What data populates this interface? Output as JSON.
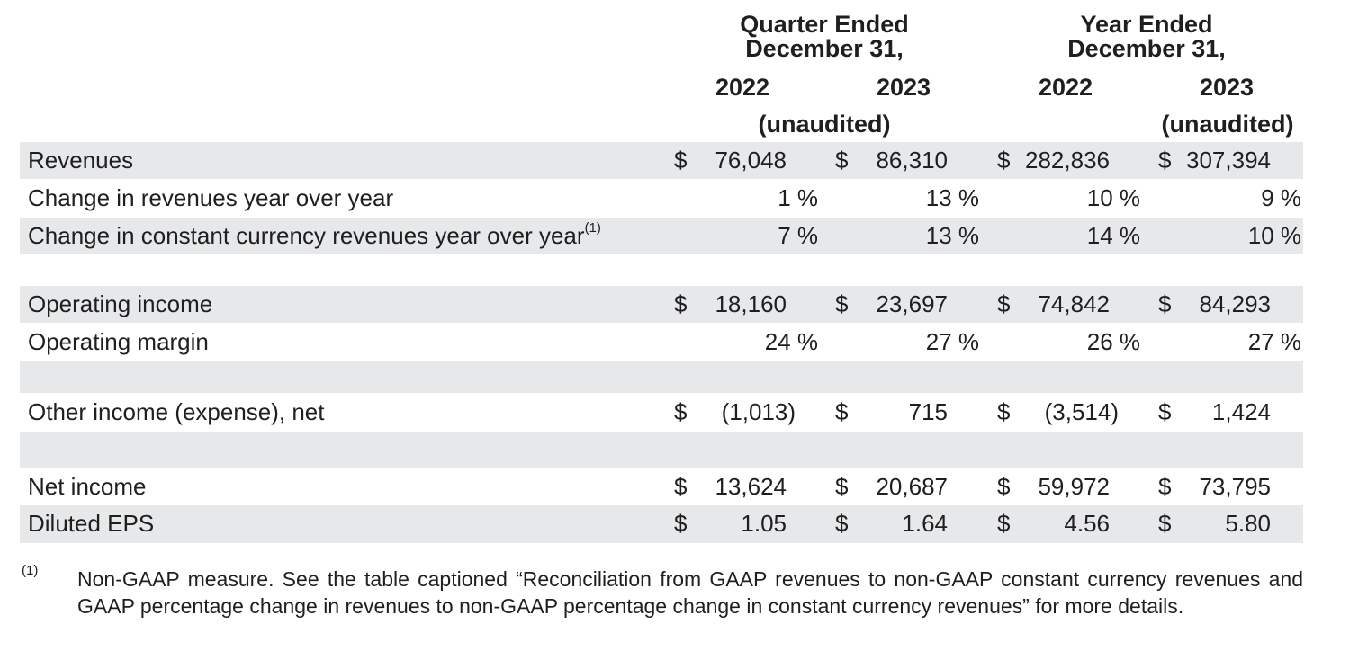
{
  "header": {
    "group_quarter": [
      "Quarter Ended",
      "December 31,"
    ],
    "group_year": [
      "Year Ended",
      "December 31,"
    ],
    "years": [
      "2022",
      "2023",
      "2022",
      "2023"
    ],
    "unaudited_quarter": "(unaudited)",
    "unaudited_year": "(unaudited)"
  },
  "rows": [
    {
      "label": "Revenues",
      "shade": true,
      "type": "money",
      "cells": [
        {
          "d": "$",
          "v": "76,048"
        },
        {
          "d": "$",
          "v": "86,310"
        },
        {
          "d": "$",
          "v": "282,836",
          "inline": true
        },
        {
          "d": "$",
          "v": "307,394",
          "inline": true
        }
      ]
    },
    {
      "label": "Change in revenues year over year",
      "shade": false,
      "type": "pct",
      "cells": [
        "1 %",
        "13 %",
        "10 %",
        "9 %"
      ]
    },
    {
      "label": "Change in constant currency revenues year over year",
      "sup": "(1)",
      "shade": true,
      "type": "pct",
      "cells": [
        "7 %",
        "13 %",
        "14 %",
        "10 %"
      ]
    },
    {
      "spacer": true,
      "shade": false
    },
    {
      "label": "Operating income",
      "shade": true,
      "type": "money",
      "cells": [
        {
          "d": "$",
          "v": "18,160"
        },
        {
          "d": "$",
          "v": "23,697"
        },
        {
          "d": "$",
          "v": "74,842"
        },
        {
          "d": "$",
          "v": "84,293"
        }
      ]
    },
    {
      "label": "Operating margin",
      "shade": false,
      "type": "pct",
      "cells": [
        "24 %",
        "27 %",
        "26 %",
        "27 %"
      ]
    },
    {
      "spacer": true,
      "shade": true
    },
    {
      "label": "Other income (expense), net",
      "shade": false,
      "type": "money",
      "cells": [
        {
          "d": "$",
          "v": "(1,013)",
          "paren": true
        },
        {
          "d": "$",
          "v": "715"
        },
        {
          "d": "$",
          "v": "(3,514)",
          "paren": true
        },
        {
          "d": "$",
          "v": "1,424"
        }
      ]
    },
    {
      "spacer": true,
      "shade": true
    },
    {
      "label": "Net income",
      "shade": false,
      "type": "money",
      "cells": [
        {
          "d": "$",
          "v": "13,624"
        },
        {
          "d": "$",
          "v": "20,687"
        },
        {
          "d": "$",
          "v": "59,972"
        },
        {
          "d": "$",
          "v": "73,795"
        }
      ]
    },
    {
      "label": "Diluted EPS",
      "shade": true,
      "type": "money",
      "cells": [
        {
          "d": "$",
          "v": "1.05"
        },
        {
          "d": "$",
          "v": "1.64"
        },
        {
          "d": "$",
          "v": "4.56"
        },
        {
          "d": "$",
          "v": "5.80"
        }
      ]
    }
  ],
  "footnote": {
    "mark": "(1)",
    "text": "Non-GAAP measure. See the table captioned “Reconciliation from GAAP revenues to non-GAAP constant currency revenues and GAAP percentage change in revenues to non-GAAP percentage change in constant currency revenues” for more details."
  }
}
